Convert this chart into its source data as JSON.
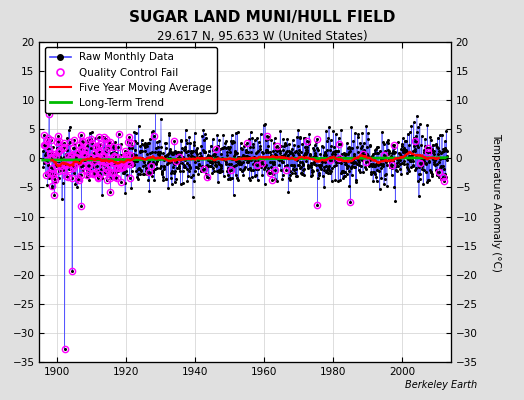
{
  "title": "SUGAR LAND MUNI/HULL FIELD",
  "subtitle": "29.617 N, 95.633 W (United States)",
  "ylabel": "Temperature Anomaly (°C)",
  "attribution": "Berkeley Earth",
  "xlim": [
    1895,
    2014
  ],
  "ylim": [
    -35,
    20
  ],
  "yticks": [
    -35,
    -30,
    -25,
    -20,
    -15,
    -10,
    -5,
    0,
    5,
    10,
    15,
    20
  ],
  "xticks": [
    1900,
    1920,
    1940,
    1960,
    1980,
    2000
  ],
  "x_start": 1896,
  "x_end": 2013,
  "seed": 12345,
  "bg_color": "#e0e0e0",
  "plot_bg": "#ffffff",
  "raw_line_color": "#4444ff",
  "raw_marker_color": "#000000",
  "qc_fail_color": "#ff00ff",
  "moving_avg_color": "#ff0000",
  "trend_color": "#00bb00",
  "legend_fontsize": 7.5,
  "title_fontsize": 11,
  "subtitle_fontsize": 8.5
}
